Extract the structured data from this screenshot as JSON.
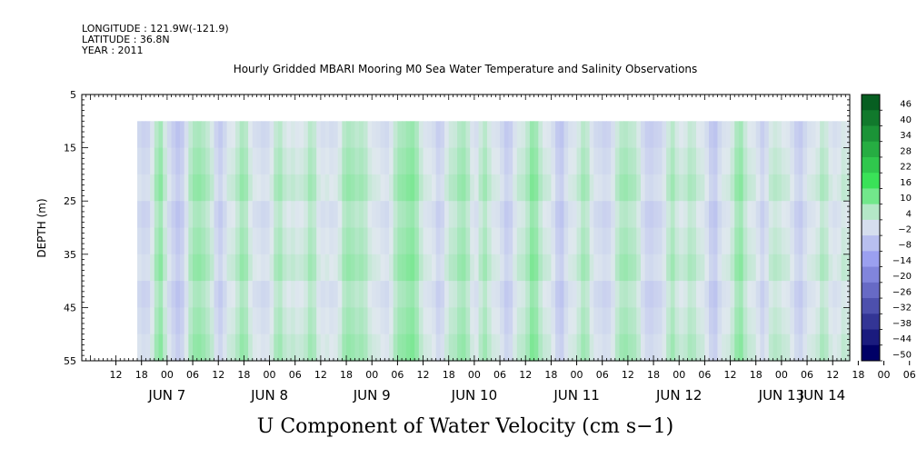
{
  "header": {
    "longitude": "LONGITUDE : 121.9W(-121.9)",
    "latitude": "LATITUDE : 36.8N",
    "year": "YEAR : 2011"
  },
  "chart_data": {
    "type": "heatmap",
    "title": "Hourly Gridded MBARI Mooring M0 Sea Water Temperature and Salinity Observations",
    "ylabel": "DEPTH (m)",
    "xlabel": "U Component of Water Velocity (cm s−1)",
    "y_ticks": [
      5,
      15,
      25,
      35,
      45,
      55
    ],
    "ylim": [
      5,
      55
    ],
    "y_inverted": true,
    "data_depth_range": [
      10,
      55
    ],
    "x_hour_ticks": [
      "12",
      "18",
      "00",
      "06",
      "12",
      "18",
      "00",
      "06",
      "12",
      "18",
      "00",
      "06",
      "12",
      "18",
      "00",
      "06",
      "12",
      "18",
      "00",
      "06",
      "12",
      "18",
      "00",
      "06",
      "12",
      "18",
      "00",
      "06",
      "12",
      "18",
      "00",
      "06"
    ],
    "x_day_labels": [
      "JUN  7",
      "JUN  8",
      "JUN  9",
      "JUN 10",
      "JUN 11",
      "JUN 12",
      "JUN 13",
      "JUN 14"
    ],
    "colorbar": {
      "ticks": [
        "46",
        "40",
        "34",
        "28",
        "22",
        "16",
        "10",
        "4",
        "−2",
        "−8",
        "−14",
        "−20",
        "−26",
        "−32",
        "−38",
        "−44",
        "−50"
      ],
      "range": [
        -50,
        50
      ],
      "neg_color": "#000066",
      "zero_color": "#dfe8ee",
      "pos_color": "#004d1a"
    },
    "hour_range": [
      4,
      184
    ],
    "data_start_hour": 17,
    "columns_u": [
      -3,
      -4,
      -2,
      1,
      4,
      6,
      3,
      -1,
      -5,
      -7,
      -4,
      0,
      3,
      5,
      7,
      6,
      3,
      1,
      -2,
      -4,
      -3,
      0,
      2,
      4,
      5,
      4,
      2,
      0,
      -2,
      -3,
      -1,
      1,
      3,
      4,
      3,
      2,
      1,
      0,
      2,
      3,
      4,
      3,
      1,
      0,
      -1,
      -2,
      0,
      2,
      4,
      5,
      6,
      5,
      4,
      3,
      2,
      1,
      -1,
      -2,
      -1,
      1,
      3,
      5,
      7,
      8,
      7,
      5,
      3,
      1,
      -1,
      -2,
      -3,
      -2,
      0,
      2,
      4,
      6,
      5,
      3,
      1,
      0,
      2,
      4,
      3,
      1,
      -1,
      -3,
      -4,
      -3,
      -1,
      1,
      3,
      5,
      7,
      6,
      4,
      2,
      0,
      -2,
      -4,
      -5,
      -3,
      -1,
      1,
      3,
      4,
      3,
      1,
      -1,
      -3,
      -4,
      -2,
      0,
      2,
      4,
      6,
      5,
      3,
      1,
      -1,
      -3,
      -5,
      -4,
      -2,
      0,
      2,
      4,
      3,
      2,
      1,
      3,
      4,
      2,
      0,
      -2,
      -4,
      -5,
      -3,
      -1,
      1,
      3,
      5,
      6,
      4,
      2,
      0,
      -2,
      -3,
      -1,
      1,
      2,
      3,
      2,
      0,
      -2,
      -3,
      -4,
      -3,
      -1,
      1,
      2,
      3,
      2,
      1,
      0,
      -1,
      1,
      2,
      3,
      2,
      1,
      0,
      -1,
      0,
      1,
      2,
      1,
      0
    ]
  }
}
